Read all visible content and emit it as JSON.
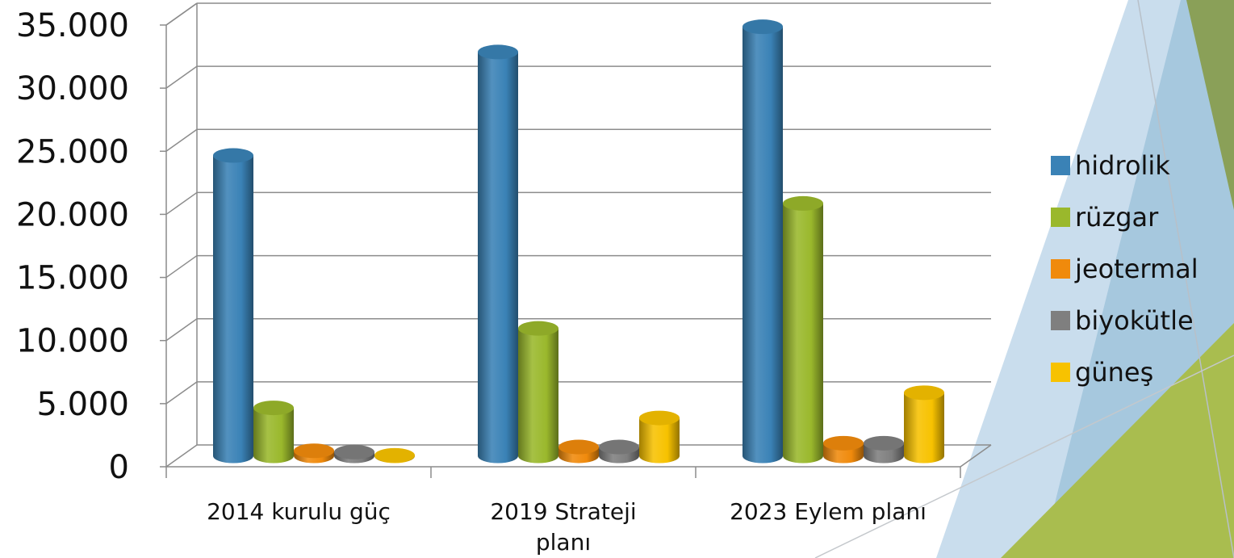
{
  "chart_data": {
    "type": "bar",
    "title": "",
    "xlabel": "",
    "ylabel": "",
    "ylim": [
      0,
      35000
    ],
    "yticks": [
      "0",
      "5.000",
      "10.000",
      "15.000",
      "20.000",
      "25.000",
      "30.000",
      "35.000"
    ],
    "grid": true,
    "legend_position": "right",
    "categories": [
      [
        "2014 kurulu güç"
      ],
      [
        "2019 Strateji",
        "planı"
      ],
      [
        "2023 Eylem planı"
      ]
    ],
    "series": [
      {
        "name": "hidrolik",
        "color": "#3a82b6",
        "values": [
          23800,
          32000,
          34000
        ]
      },
      {
        "name": "rüzgar",
        "color": "#9ab82c",
        "values": [
          3800,
          10100,
          20000
        ]
      },
      {
        "name": "jeotermal",
        "color": "#f08a0c",
        "values": [
          400,
          700,
          1000
        ]
      },
      {
        "name": "biyokütle",
        "color": "#7f7f7f",
        "values": [
          300,
          700,
          1000
        ]
      },
      {
        "name": "güneş",
        "color": "#f7c200",
        "values": [
          40,
          3000,
          5000
        ]
      }
    ]
  }
}
